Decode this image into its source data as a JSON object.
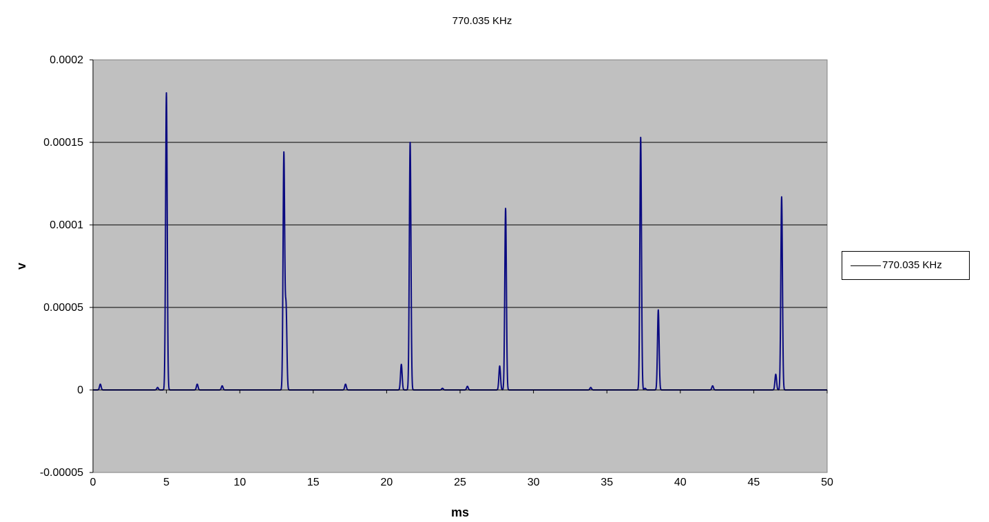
{
  "chart_data": {
    "type": "line",
    "title": "770.035 KHz",
    "xlabel": "ms",
    "ylabel": "v",
    "xlim": [
      0,
      50
    ],
    "ylim": [
      -5e-05,
      0.0002
    ],
    "x_ticks": [
      "0",
      "5",
      "10",
      "15",
      "20",
      "25",
      "30",
      "35",
      "40",
      "45",
      "50"
    ],
    "y_ticks": [
      "-0.00005",
      "0",
      "0.00005",
      "0.0001",
      "0.00015",
      "0.0002"
    ],
    "grid": true,
    "legend": "right",
    "background": "#c0c0c0",
    "line_color": "#0a0a80",
    "series": [
      {
        "name": "770.035 KHz",
        "baseline": 0,
        "peaks": [
          {
            "x": 0.5,
            "y": 3.5e-06
          },
          {
            "x": 4.4,
            "y": 1.5e-06
          },
          {
            "x": 5.0,
            "y": 0.00018
          },
          {
            "x": 7.1,
            "y": 3.5e-06
          },
          {
            "x": 8.8,
            "y": 2.5e-06
          },
          {
            "x": 13.0,
            "y": 0.000143
          },
          {
            "x": 13.15,
            "y": 5e-05
          },
          {
            "x": 17.2,
            "y": 3.5e-06
          },
          {
            "x": 21.0,
            "y": 1.55e-05
          },
          {
            "x": 21.6,
            "y": 0.00015
          },
          {
            "x": 23.8,
            "y": 1e-06
          },
          {
            "x": 25.5,
            "y": 2.2e-06
          },
          {
            "x": 27.7,
            "y": 1.45e-05
          },
          {
            "x": 28.1,
            "y": 0.00011
          },
          {
            "x": 33.9,
            "y": 1.5e-06
          },
          {
            "x": 37.3,
            "y": 0.000153
          },
          {
            "x": 37.6,
            "y": 1e-06
          },
          {
            "x": 38.5,
            "y": 4.85e-05
          },
          {
            "x": 42.2,
            "y": 2.5e-06
          },
          {
            "x": 46.5,
            "y": 9.5e-06
          },
          {
            "x": 46.9,
            "y": 0.000117
          }
        ]
      }
    ]
  }
}
